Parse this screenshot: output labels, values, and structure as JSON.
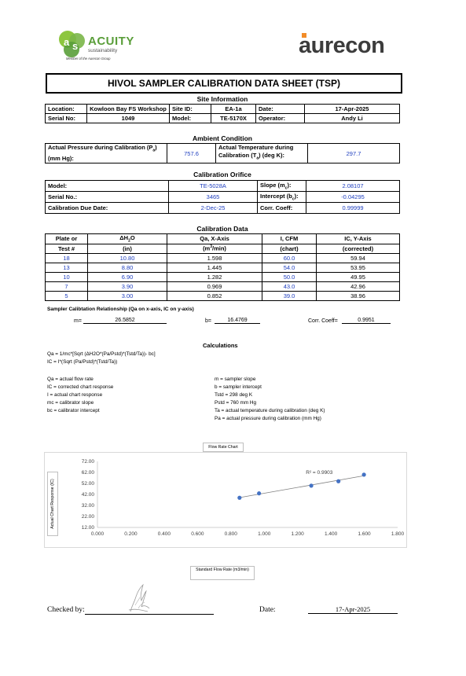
{
  "header": {
    "acuity_name": "ACUITY",
    "acuity_sub": "sustainability",
    "acuity_member": "Member of the Aurecon Group",
    "aurecon_logo": "aurecon"
  },
  "title": "HIVOL SAMPLER CALIBRATION  DATA SHEET (TSP)",
  "site": {
    "heading": "Site Information",
    "location_label": "Location:",
    "location": "Kowloon Bay FS Workshop",
    "site_id_label": "Site ID:",
    "site_id": "EA-1a",
    "date_label": "Date:",
    "date": "17-Apr-2025",
    "serial_label": "Serial No:",
    "serial": "1049",
    "model_label": "Model:",
    "model": "TE-5170X",
    "operator_label": "Operator:",
    "operator": "Andy Li"
  },
  "ambient": {
    "heading": "Ambient Condition",
    "pressure_label_1": "Actual Pressure during Calibration (P",
    "pressure_label_sub": "a",
    "pressure_label_2": ")",
    "pressure_label_3": "(mm Hg):",
    "pressure": "757.6",
    "temp_label_1": "Actual Temperature during",
    "temp_label_2": "Calibration (T",
    "temp_label_sub": "a",
    "temp_label_3": ") (deg K):",
    "temp": "297.7"
  },
  "orifice": {
    "heading": "Calibration Orifice",
    "model_label": "Model:",
    "model": "TE-5028A",
    "slope_label": "Slope (m",
    "slope_sub": "c",
    "slope_tail": "):",
    "slope": "2.08107",
    "serial_label": "Serial No.:",
    "serial": "3465",
    "intercept_label": "Intercept (b",
    "intercept_sub": "c",
    "intercept_tail": "):",
    "intercept": "-0.04295",
    "due_label": "Calibration Due Date:",
    "due": "2-Dec-25",
    "corr_label": "Corr. Coeff:",
    "corr": "0.99999"
  },
  "calib": {
    "heading": "Calibration Data",
    "h1a": "Plate or",
    "h1b": "Test #",
    "h2a": "ΔH",
    "h2sub": "2",
    "h2tail": "O",
    "h2b": "(in)",
    "h3a": "Qa, X-Axis",
    "h3b": "(m",
    "h3sup": "3",
    "h3tail": "/min)",
    "h4a": "I, CFM",
    "h4b": "(chart)",
    "h5a": "IC, Y-Axis",
    "h5b": "(corrected)",
    "rows": [
      {
        "plate": "18",
        "dh": "10.80",
        "qa": "1.598",
        "i": "60.0",
        "ic": "59.94"
      },
      {
        "plate": "13",
        "dh": "8.80",
        "qa": "1.445",
        "i": "54.0",
        "ic": "53.95"
      },
      {
        "plate": "10",
        "dh": "6.90",
        "qa": "1.282",
        "i": "50.0",
        "ic": "49.95"
      },
      {
        "plate": "7",
        "dh": "3.90",
        "qa": "0.969",
        "i": "43.0",
        "ic": "42.96"
      },
      {
        "plate": "5",
        "dh": "3.00",
        "qa": "0.852",
        "i": "39.0",
        "ic": "38.96"
      }
    ]
  },
  "relationship": {
    "heading": "Sampler Calibtation Relationship (Qa on x-axis, IC on y-axis)",
    "m_label": "m=",
    "m": "26.5852",
    "b_label": "b=",
    "b": "16.4769",
    "corr_label": "Corr. Coeff=",
    "corr": "0.9951"
  },
  "calculations": {
    "heading": "Calculations",
    "eq1": "Qa = 1/mc*[Sqrt (ΔH2O*(Pa/Pstd)*(Tstd/Ta))- bc]",
    "eq2": "IC = I*(Sqrt (Pa/Pstd)*(Tstd/Ta))",
    "left_defs": [
      "Qa = actual flow rate",
      "IC = corrected chart response",
      "I = actual chart response",
      "mc = calibrator slope",
      "bc = calibrator intercept"
    ],
    "right_defs": [
      "m = sampler slope",
      "b  = sampler intercept",
      "Tstd = 298 deg K",
      "Pstd = 760 mm Hg",
      "Ta = actual temperature during calibration (deg K)",
      "Pa = actual pressure during calibration (mm Hg)"
    ]
  },
  "chart_data": {
    "type": "scatter",
    "title": "Flow Rate Chart",
    "xlabel": "Standard Flow Rate (m3/min)",
    "ylabel": "Actual Chart Response (IC)",
    "xlim": [
      0,
      1.8
    ],
    "ylim": [
      12,
      72
    ],
    "x_ticks": [
      "0.000",
      "0.200",
      "0.400",
      "0.600",
      "0.800",
      "1.000",
      "1.200",
      "1.400",
      "1.600",
      "1.800"
    ],
    "y_ticks": [
      "12.00",
      "22.00",
      "32.00",
      "42.00",
      "52.00",
      "62.00",
      "72.00"
    ],
    "points": [
      {
        "x": 0.852,
        "y": 38.96
      },
      {
        "x": 0.969,
        "y": 42.96
      },
      {
        "x": 1.282,
        "y": 49.95
      },
      {
        "x": 1.445,
        "y": 53.95
      },
      {
        "x": 1.598,
        "y": 59.94
      }
    ],
    "trendline": {
      "slope": 26.5852,
      "intercept": 16.4769,
      "label": "R² = 0.9903"
    },
    "colors": {
      "point": "#4472c4",
      "line": "#7f7f7f"
    }
  },
  "footer": {
    "checked_label": "Checked by:",
    "date_label": "Date:",
    "date": "17-Apr-2025"
  }
}
